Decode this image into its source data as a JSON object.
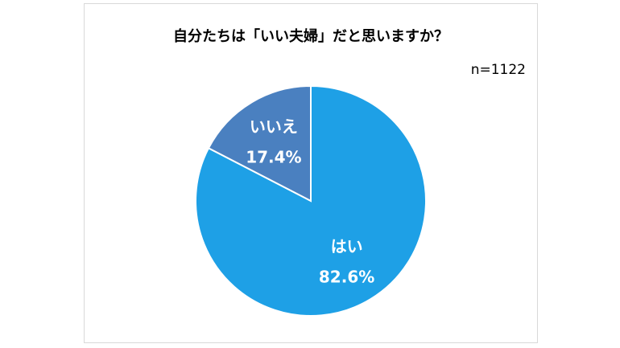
{
  "chart_data": {
    "type": "pie",
    "title": "自分たちは「いい夫婦」だと思いますか？",
    "annotation": "n=1122",
    "slices": [
      {
        "label": "はい",
        "value": 82.6,
        "value_label": "82.6%",
        "color": "#1ea0e6"
      },
      {
        "label": "いいえ",
        "value": 17.4,
        "value_label": "17.4%",
        "color": "#4a80c0"
      }
    ],
    "start_angle": "12 o'clock",
    "direction": "clockwise",
    "slice_border_color": "#ffffff"
  }
}
